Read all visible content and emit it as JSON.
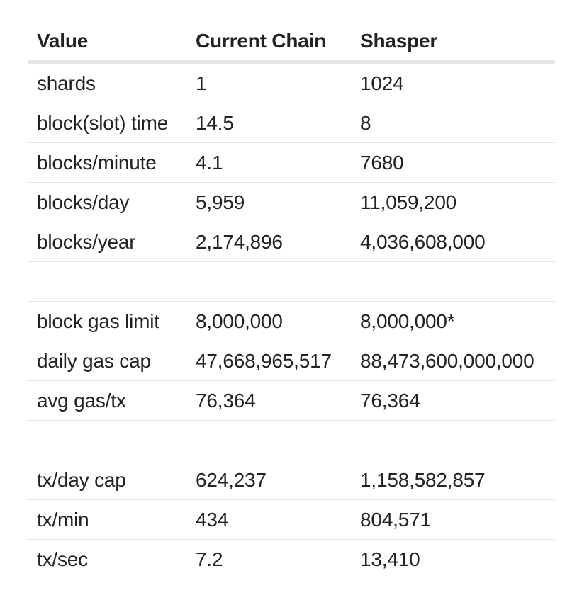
{
  "table": {
    "headers": [
      "Value",
      "Current Chain",
      "Shasper"
    ],
    "rows": [
      [
        "shards",
        "1",
        "1024"
      ],
      [
        "block(slot) time",
        "14.5",
        "8"
      ],
      [
        "blocks/minute",
        "4.1",
        "7680"
      ],
      [
        "blocks/day",
        "5,959",
        "11,059,200"
      ],
      [
        "blocks/year",
        "2,174,896",
        "4,036,608,000"
      ],
      [
        "",
        "",
        ""
      ],
      [
        "block gas limit",
        "8,000,000",
        "8,000,000*"
      ],
      [
        "daily gas cap",
        "47,668,965,517",
        "88,473,600,000,000"
      ],
      [
        "avg gas/tx",
        "76,364",
        "76,364"
      ],
      [
        "",
        "",
        ""
      ],
      [
        "tx/day cap",
        "624,237",
        "1,158,582,857"
      ],
      [
        "tx/min",
        "434",
        "804,571"
      ],
      [
        "tx/sec",
        "7.2",
        "13,410"
      ]
    ]
  }
}
